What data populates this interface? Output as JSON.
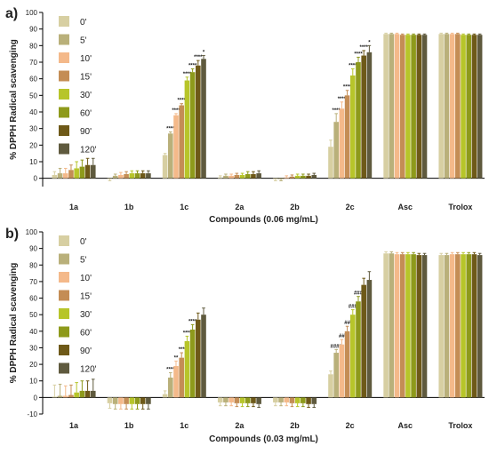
{
  "colors": [
    "#d7cfa2",
    "#b9b07a",
    "#f4b98a",
    "#c48d55",
    "#b7c52a",
    "#8e9a1b",
    "#6e5918",
    "#5f5a3e"
  ],
  "chart_data": [
    {
      "type": "bar",
      "panel": "a)",
      "xlabel": "Compounds (0.06 mg/mL)",
      "ylabel": "% DPPH Radical scavenging",
      "ylim": [
        -5,
        100
      ],
      "yticks": [
        0,
        10,
        20,
        30,
        40,
        50,
        60,
        70,
        80,
        90,
        100
      ],
      "legend_position": "top-left",
      "categories": [
        "1a",
        "1b",
        "1c",
        "2a",
        "2b",
        "2c",
        "Asc",
        "Trolox"
      ],
      "series": [
        {
          "name": "0'",
          "values": [
            2,
            -0.5,
            14,
            0.5,
            -0.5,
            19,
            87,
            87
          ],
          "errors": [
            2,
            1,
            1,
            1,
            1,
            4,
            0.5,
            0.5
          ]
        },
        {
          "name": "5'",
          "values": [
            3,
            1.5,
            27,
            1.5,
            -0.5,
            34,
            87,
            87
          ],
          "errors": [
            3,
            1,
            1,
            1,
            1,
            5,
            0.5,
            0.5
          ]
        },
        {
          "name": "10'",
          "values": [
            3,
            2,
            38,
            1.5,
            0.5,
            42,
            87,
            87
          ],
          "errors": [
            3,
            1.5,
            1,
            1,
            1,
            4,
            0.5,
            0.5
          ]
        },
        {
          "name": "15'",
          "values": [
            5,
            2.5,
            44,
            2,
            1,
            50,
            86.5,
            87
          ],
          "errors": [
            3,
            1.5,
            1,
            1,
            1,
            3,
            0.5,
            0.5
          ]
        },
        {
          "name": "30'",
          "values": [
            6,
            3,
            59,
            2,
            1.5,
            62,
            86.5,
            86.5
          ],
          "errors": [
            4,
            1.5,
            2,
            1,
            1,
            4,
            0.5,
            0.5
          ]
        },
        {
          "name": "60'",
          "values": [
            7,
            3,
            64,
            2.5,
            1.5,
            70,
            86.5,
            86.5
          ],
          "errors": [
            4,
            1.5,
            2,
            1.5,
            1,
            3,
            0.5,
            0.5
          ]
        },
        {
          "name": "90'",
          "values": [
            8,
            3,
            68,
            2.5,
            1.5,
            74,
            86.5,
            86.5
          ],
          "errors": [
            4,
            1.5,
            3,
            1.5,
            1,
            3,
            0.5,
            0.5
          ]
        },
        {
          "name": "120'",
          "values": [
            8,
            3,
            72,
            3,
            2,
            76,
            86.5,
            86.5
          ],
          "errors": [
            4,
            1.5,
            2,
            1.5,
            1,
            4,
            0.5,
            0.5
          ]
        }
      ],
      "significance": {
        "1c": [
          "",
          "****",
          "****",
          "****",
          "****",
          "****",
          "****",
          "*"
        ],
        "2c": [
          "",
          "****",
          "****",
          "****",
          "****",
          "****",
          "****",
          "*"
        ]
      }
    },
    {
      "type": "bar",
      "panel": "b)",
      "xlabel": "Compounds (0.03 mg/mL)",
      "ylabel": "% DPPH Radical scavenging",
      "ylim": [
        -10,
        100
      ],
      "yticks": [
        -10,
        0,
        10,
        20,
        30,
        40,
        50,
        60,
        70,
        80,
        90,
        100
      ],
      "legend_position": "top-left",
      "categories": [
        "1a",
        "1b",
        "1c",
        "2a",
        "2b",
        "2c",
        "Asc",
        "Trolox"
      ],
      "series": [
        {
          "name": "0'",
          "values": [
            0.5,
            -3.5,
            2,
            -3,
            -3,
            14,
            87,
            86
          ],
          "errors": [
            7,
            3,
            2,
            2,
            2,
            2,
            1,
            1
          ]
        },
        {
          "name": "5'",
          "values": [
            1,
            -4,
            12,
            -3,
            -3,
            27,
            87,
            86
          ],
          "errors": [
            7,
            3,
            3,
            2,
            2,
            2,
            1,
            1
          ]
        },
        {
          "name": "10'",
          "values": [
            1,
            -4,
            19,
            -3,
            -3,
            32,
            86.5,
            86.5
          ],
          "errors": [
            6,
            3,
            3,
            2,
            2,
            3,
            1,
            1
          ]
        },
        {
          "name": "15'",
          "values": [
            1.5,
            -4,
            24,
            -3.5,
            -3.5,
            40,
            86.5,
            86.5
          ],
          "errors": [
            6,
            3,
            3,
            2,
            2,
            3,
            1,
            1
          ]
        },
        {
          "name": "30'",
          "values": [
            3,
            -4,
            34,
            -3.5,
            -3.5,
            50,
            86.5,
            86.5
          ],
          "errors": [
            6,
            3,
            3,
            2,
            2,
            3,
            1,
            1
          ]
        },
        {
          "name": "60'",
          "values": [
            4,
            -4,
            41,
            -3.5,
            -3.5,
            58,
            86.5,
            86.5
          ],
          "errors": [
            6,
            3,
            3,
            2,
            2,
            3,
            1,
            1
          ]
        },
        {
          "name": "90'",
          "values": [
            4,
            -4,
            47,
            -3.5,
            -4,
            68,
            86,
            86.5
          ],
          "errors": [
            6,
            3,
            4,
            2,
            2,
            4,
            1,
            1
          ]
        },
        {
          "name": "120'",
          "values": [
            4,
            -4,
            50,
            -4,
            -4,
            71,
            86,
            86
          ],
          "errors": [
            7,
            3,
            4,
            2,
            2,
            5,
            1,
            1
          ]
        }
      ],
      "significance": {
        "1c": [
          "",
          "****",
          "**",
          "***",
          "****",
          "****",
          "",
          ""
        ],
        "2c": [
          "",
          "####",
          "##",
          "##",
          "###",
          "###",
          "",
          ""
        ]
      }
    }
  ]
}
